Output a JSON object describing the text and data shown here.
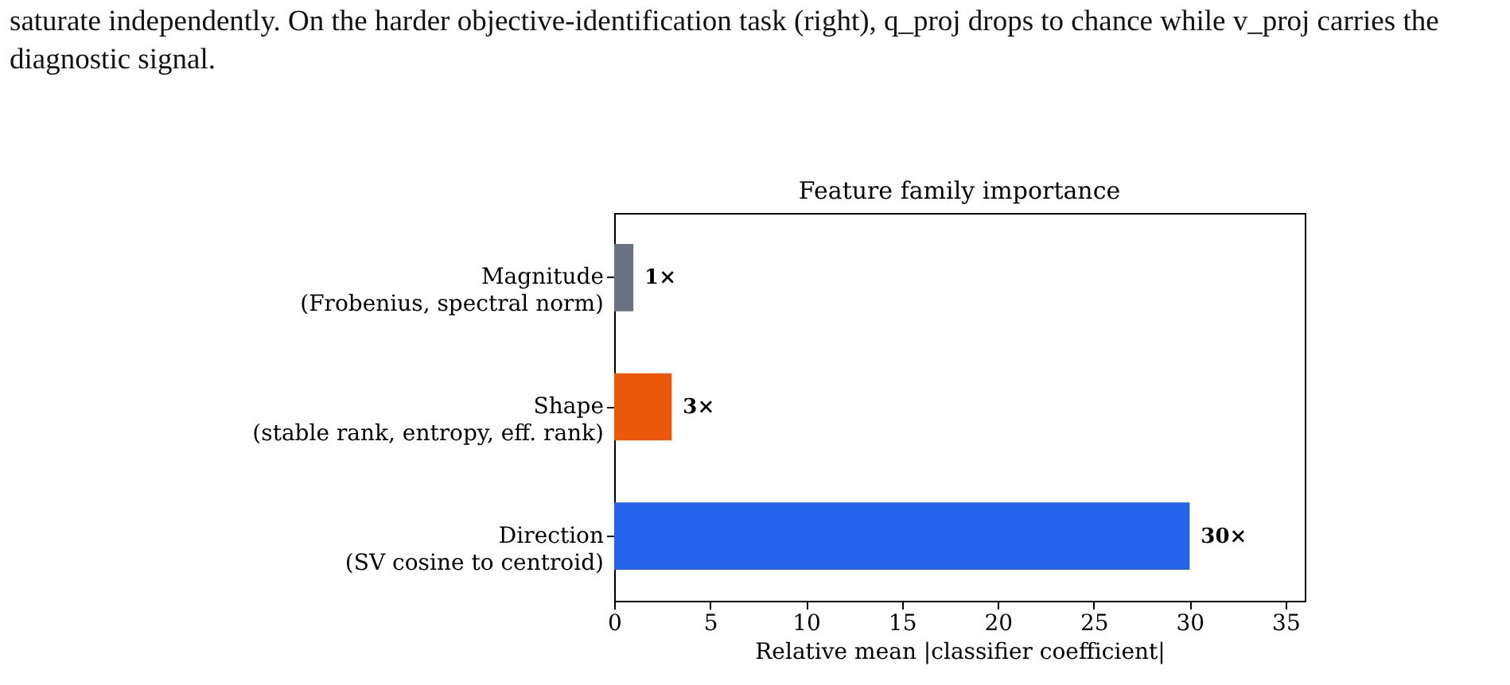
{
  "chart_data": {
    "type": "bar",
    "orientation": "horizontal",
    "title": "Feature family importance",
    "xlabel": "Relative mean |classifier coefficient|",
    "categories": [
      "Magnitude\n(Frobenius, spectral norm)",
      "Shape\n(stable rank, entropy, eff. rank)",
      "Direction\n(SV cosine to centroid)"
    ],
    "values": [
      1,
      3,
      30
    ],
    "colors": [
      "#6b7280",
      "#ea580c",
      "#2563eb"
    ],
    "value_labels": [
      "1×",
      "3×",
      "30×"
    ],
    "xlim": [
      0,
      36
    ],
    "xticks": [
      0,
      5,
      10,
      15,
      20,
      25,
      30,
      35
    ],
    "grid": false,
    "annotations": [
      "saturate independently. On the harder objective-identification task (right), q_proj drops to chance while v_proj carries the diagnostic signal."
    ]
  }
}
